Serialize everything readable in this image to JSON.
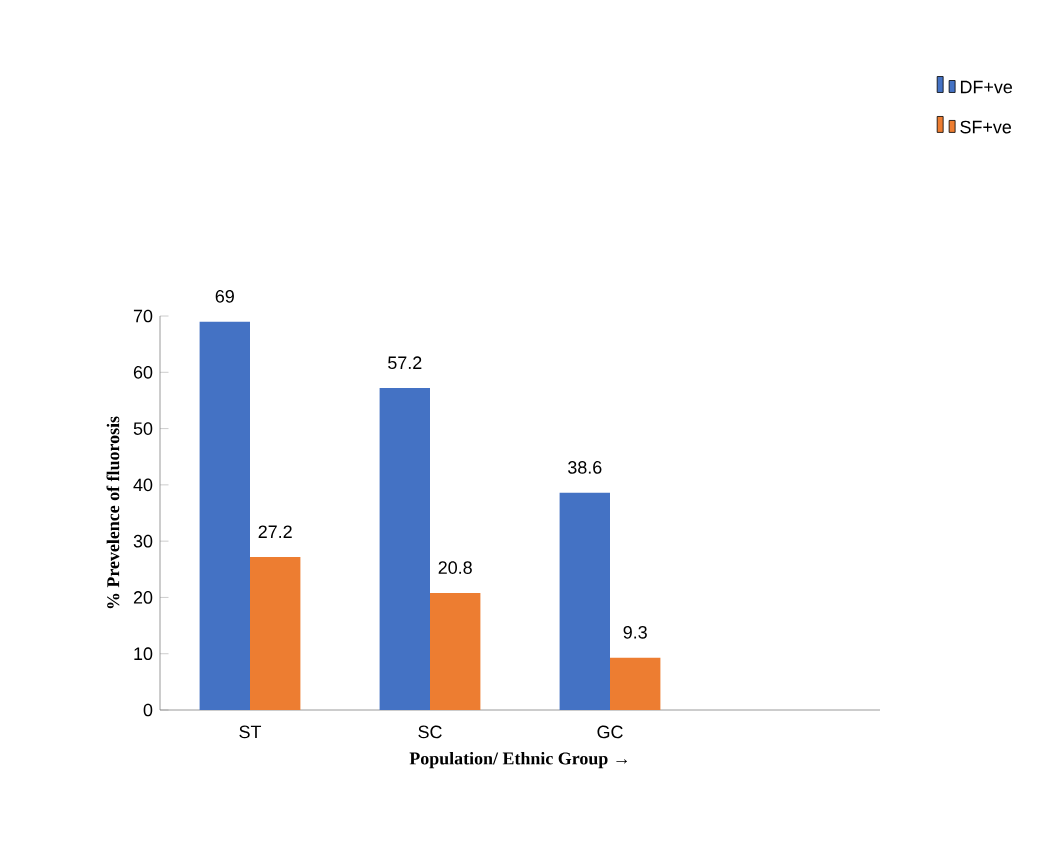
{
  "chart_data": {
    "type": "bar",
    "xlabel": "Population/ Ethnic Group →",
    "ylabel": "% Prevelence of fluorosis",
    "categories": [
      "ST",
      "SC",
      "GC",
      null
    ],
    "series": [
      {
        "name": "DF+ve",
        "color": "#4472c4",
        "values": [
          69,
          57.2,
          38.6,
          null
        ]
      },
      {
        "name": "SF+ve",
        "color": "#ed7d31",
        "values": [
          27.2,
          20.8,
          9.3,
          null
        ]
      }
    ],
    "ylim": [
      0,
      70
    ],
    "yticks": [
      0,
      10,
      20,
      30,
      40,
      50,
      60,
      70
    ],
    "data_labels": true,
    "legend": "top right",
    "grid": false
  }
}
